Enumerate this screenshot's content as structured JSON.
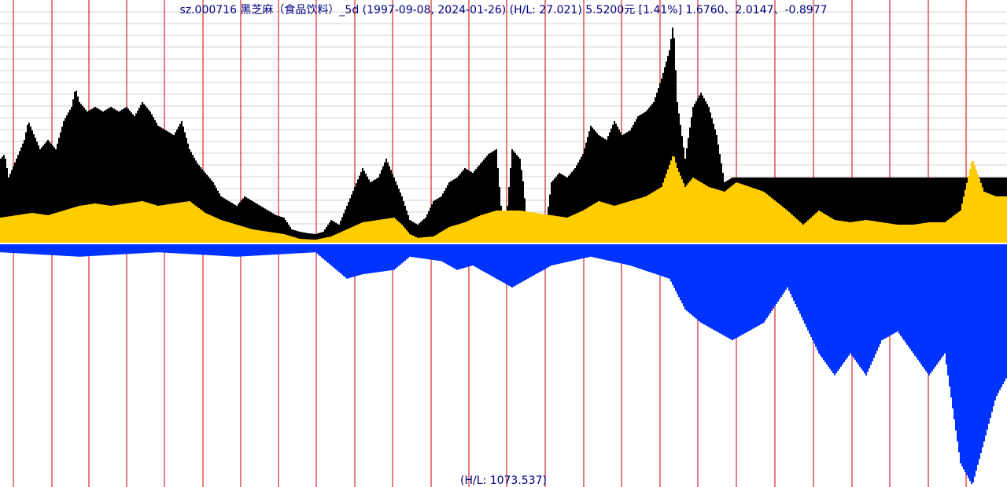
{
  "chart_data": {
    "type": "bar",
    "title": "sz.000716 黑芝麻（食品饮料）_5d (1997-09-08, 2024-01-26) (H/L: 27.021) 5.5200元 [1.41%]  1.6760、2.0147、-0.8977",
    "footer_label": "(H/L: 1073.537)",
    "x_range": [
      "1997-09-08",
      "2024-01-26"
    ],
    "upper_panel": {
      "scale_hl": 27.021,
      "last_price": 5.52,
      "last_change_pct": 1.41,
      "indicators": [
        1.676,
        2.0147,
        -0.8977
      ],
      "series": [
        {
          "color": "#000000",
          "description": "upper envelope",
          "points": [
            [
              0,
              1.8
            ],
            [
              5,
              1.9
            ],
            [
              10,
              1.4
            ],
            [
              20,
              1.8
            ],
            [
              30,
              2.2
            ],
            [
              35,
              2.6
            ],
            [
              40,
              2.4
            ],
            [
              50,
              2.0
            ],
            [
              60,
              2.2
            ],
            [
              70,
              2.0
            ],
            [
              80,
              2.6
            ],
            [
              90,
              2.9
            ],
            [
              95,
              3.3
            ],
            [
              100,
              3.0
            ],
            [
              110,
              2.8
            ],
            [
              120,
              2.9
            ],
            [
              130,
              2.8
            ],
            [
              140,
              2.9
            ],
            [
              150,
              2.8
            ],
            [
              160,
              2.9
            ],
            [
              170,
              2.7
            ],
            [
              180,
              3.0
            ],
            [
              190,
              2.8
            ],
            [
              200,
              2.5
            ],
            [
              210,
              2.4
            ],
            [
              220,
              2.3
            ],
            [
              230,
              2.6
            ],
            [
              240,
              2.0
            ],
            [
              250,
              1.7
            ],
            [
              260,
              1.5
            ],
            [
              270,
              1.3
            ],
            [
              280,
              1.0
            ],
            [
              290,
              0.9
            ],
            [
              300,
              0.8
            ],
            [
              310,
              1.0
            ],
            [
              320,
              0.9
            ],
            [
              330,
              0.8
            ],
            [
              340,
              0.7
            ],
            [
              350,
              0.6
            ],
            [
              360,
              0.55
            ],
            [
              370,
              0.3
            ],
            [
              380,
              0.25
            ],
            [
              390,
              0.22
            ],
            [
              400,
              0.2
            ],
            [
              410,
              0.25
            ],
            [
              420,
              0.5
            ],
            [
              430,
              0.4
            ],
            [
              440,
              0.8
            ],
            [
              450,
              1.2
            ],
            [
              460,
              1.6
            ],
            [
              470,
              1.3
            ],
            [
              480,
              1.4
            ],
            [
              490,
              1.8
            ],
            [
              500,
              1.4
            ],
            [
              510,
              1.0
            ],
            [
              520,
              0.5
            ],
            [
              530,
              0.4
            ],
            [
              540,
              0.55
            ],
            [
              550,
              0.9
            ],
            [
              560,
              1.0
            ],
            [
              570,
              1.3
            ],
            [
              580,
              1.4
            ],
            [
              590,
              1.6
            ],
            [
              600,
              1.5
            ],
            [
              610,
              1.7
            ],
            [
              620,
              1.9
            ],
            [
              630,
              2.0
            ],
            [
              640,
              0
            ],
            [
              650,
              2.0
            ],
            [
              660,
              1.8
            ],
            [
              665,
              1.2
            ],
            [
              670,
              0
            ],
            [
              680,
              0
            ],
            [
              690,
              0
            ],
            [
              700,
              1.3
            ],
            [
              710,
              1.5
            ],
            [
              720,
              1.4
            ],
            [
              730,
              1.6
            ],
            [
              740,
              1.9
            ],
            [
              750,
              2.5
            ],
            [
              760,
              2.3
            ],
            [
              770,
              2.2
            ],
            [
              780,
              2.6
            ],
            [
              790,
              2.3
            ],
            [
              800,
              2.4
            ],
            [
              810,
              2.7
            ],
            [
              820,
              2.8
            ],
            [
              830,
              3.0
            ],
            [
              840,
              3.5
            ],
            [
              850,
              4.1
            ],
            [
              855,
              4.7
            ],
            [
              860,
              3.0
            ],
            [
              870,
              1.8
            ],
            [
              880,
              2.9
            ],
            [
              890,
              3.2
            ],
            [
              900,
              2.9
            ],
            [
              910,
              2.3
            ],
            [
              920,
              1.3
            ],
            [
              930,
              1.4
            ],
            [
              935,
              1.4
            ]
          ]
        },
        {
          "color": "#ffcc00",
          "description": "base level",
          "points": [
            [
              0,
              0.55
            ],
            [
              20,
              0.6
            ],
            [
              40,
              0.65
            ],
            [
              60,
              0.6
            ],
            [
              80,
              0.7
            ],
            [
              100,
              0.8
            ],
            [
              120,
              0.85
            ],
            [
              140,
              0.8
            ],
            [
              160,
              0.85
            ],
            [
              180,
              0.9
            ],
            [
              200,
              0.8
            ],
            [
              220,
              0.85
            ],
            [
              240,
              0.9
            ],
            [
              260,
              0.65
            ],
            [
              280,
              0.5
            ],
            [
              300,
              0.4
            ],
            [
              320,
              0.3
            ],
            [
              340,
              0.25
            ],
            [
              360,
              0.2
            ],
            [
              380,
              0.1
            ],
            [
              400,
              0.08
            ],
            [
              420,
              0.15
            ],
            [
              440,
              0.3
            ],
            [
              460,
              0.45
            ],
            [
              480,
              0.5
            ],
            [
              500,
              0.55
            ],
            [
              510,
              0.4
            ],
            [
              520,
              0.2
            ],
            [
              530,
              0.12
            ],
            [
              550,
              0.15
            ],
            [
              570,
              0.35
            ],
            [
              590,
              0.45
            ],
            [
              610,
              0.6
            ],
            [
              630,
              0.7
            ],
            [
              650,
              0.7
            ],
            [
              660,
              0.7
            ],
            [
              700,
              0.6
            ],
            [
              720,
              0.55
            ],
            [
              740,
              0.7
            ],
            [
              760,
              0.9
            ],
            [
              780,
              0.8
            ],
            [
              800,
              0.9
            ],
            [
              820,
              1.0
            ],
            [
              840,
              1.2
            ],
            [
              855,
              1.9
            ],
            [
              860,
              1.6
            ],
            [
              870,
              1.2
            ],
            [
              880,
              1.4
            ],
            [
              900,
              1.2
            ],
            [
              920,
              1.1
            ],
            [
              935,
              1.3
            ],
            [
              970,
              1.1
            ],
            [
              1000,
              0.7
            ],
            [
              1020,
              0.4
            ],
            [
              1040,
              0.7
            ],
            [
              1060,
              0.5
            ],
            [
              1080,
              0.45
            ],
            [
              1100,
              0.5
            ],
            [
              1120,
              0.45
            ],
            [
              1140,
              0.4
            ],
            [
              1160,
              0.4
            ],
            [
              1180,
              0.45
            ],
            [
              1200,
              0.45
            ],
            [
              1220,
              0.7
            ],
            [
              1235,
              1.8
            ],
            [
              1250,
              1.1
            ],
            [
              1265,
              1.0
            ],
            [
              1280,
              1.0
            ]
          ]
        }
      ]
    },
    "lower_panel": {
      "scale_hl": 1073.537,
      "series": [
        {
          "color": "#0033ff",
          "description": "volume",
          "points": [
            [
              0,
              0.02
            ],
            [
              100,
              0.03
            ],
            [
              200,
              0.02
            ],
            [
              300,
              0.03
            ],
            [
              400,
              0.02
            ],
            [
              440,
              0.08
            ],
            [
              460,
              0.07
            ],
            [
              500,
              0.06
            ],
            [
              520,
              0.03
            ],
            [
              560,
              0.04
            ],
            [
              580,
              0.06
            ],
            [
              600,
              0.05
            ],
            [
              620,
              0.07
            ],
            [
              650,
              0.1
            ],
            [
              700,
              0.05
            ],
            [
              750,
              0.03
            ],
            [
              800,
              0.05
            ],
            [
              850,
              0.08
            ],
            [
              870,
              0.15
            ],
            [
              890,
              0.18
            ],
            [
              910,
              0.2
            ],
            [
              930,
              0.22
            ],
            [
              970,
              0.18
            ],
            [
              1000,
              0.1
            ],
            [
              1040,
              0.25
            ],
            [
              1060,
              0.3
            ],
            [
              1080,
              0.25
            ],
            [
              1100,
              0.3
            ],
            [
              1120,
              0.22
            ],
            [
              1140,
              0.2
            ],
            [
              1160,
              0.25
            ],
            [
              1180,
              0.3
            ],
            [
              1200,
              0.25
            ],
            [
              1220,
              0.5
            ],
            [
              1235,
              0.55
            ],
            [
              1250,
              0.45
            ],
            [
              1265,
              0.35
            ],
            [
              1280,
              0.3
            ]
          ]
        }
      ]
    }
  }
}
